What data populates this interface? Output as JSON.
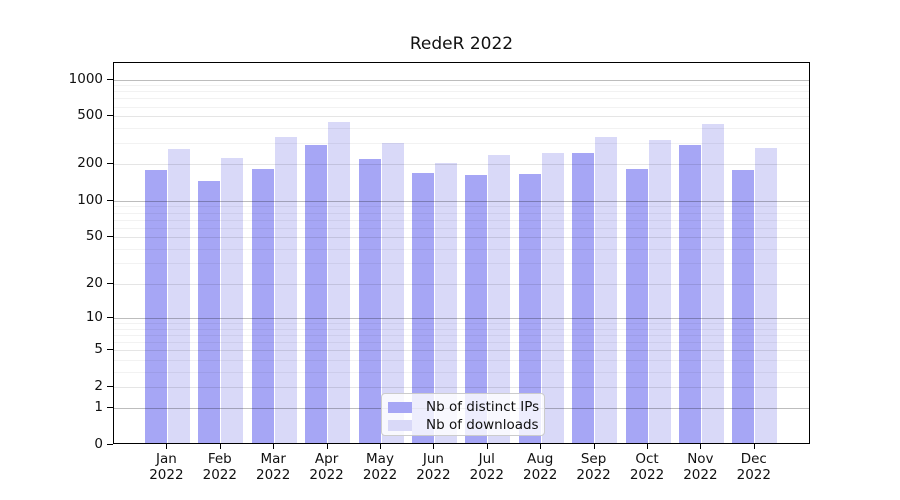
{
  "chart_data": {
    "type": "bar",
    "title": "RedeR 2022",
    "categories": [
      "Jan",
      "Feb",
      "Mar",
      "Apr",
      "May",
      "Jun",
      "Jul",
      "Aug",
      "Sep",
      "Oct",
      "Nov",
      "Dec"
    ],
    "year_label": "2022",
    "series": [
      {
        "name": "Nb of distinct IPs",
        "color": "#a6a6f5",
        "values": [
          180,
          145,
          185,
          290,
          220,
          170,
          163,
          168,
          250,
          185,
          290,
          180
        ]
      },
      {
        "name": "Nb of downloads",
        "color": "#d9d9f8",
        "values": [
          270,
          225,
          340,
          450,
          300,
          205,
          240,
          250,
          340,
          320,
          430,
          275
        ]
      }
    ],
    "y_scale": "log10(1+x)",
    "y_ticks": [
      0,
      1,
      2,
      5,
      10,
      20,
      50,
      100,
      200,
      500,
      1000
    ],
    "y_minor_ticks": [
      3,
      4,
      6,
      7,
      8,
      9,
      30,
      40,
      60,
      70,
      80,
      90,
      300,
      400,
      600,
      700,
      800,
      900
    ],
    "ylim": [
      0,
      1300
    ],
    "grid": true,
    "legend_position": "lower center"
  }
}
